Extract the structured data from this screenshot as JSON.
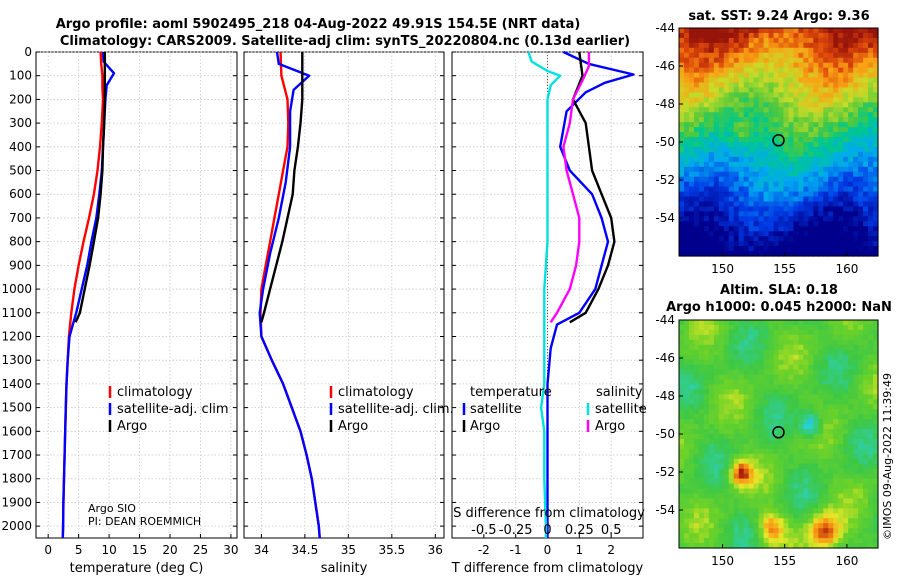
{
  "title": {
    "line1": "Argo profile: aoml 5902495_218 04-Aug-2022 49.91S 154.5E (NRT data)",
    "line2": "Climatology: CARS2009. Satellite-adj clim: synTS_20220804.nc (0.13d earlier)"
  },
  "chart_data": [
    {
      "type": "line",
      "xlabel": "temperature (deg C)",
      "xlim": [
        -2,
        31
      ],
      "xticks": [
        0,
        5,
        10,
        15,
        20,
        25,
        30
      ],
      "ylim": [
        0,
        2050
      ],
      "yticks": [
        0,
        100,
        200,
        300,
        400,
        500,
        600,
        700,
        800,
        900,
        1000,
        1100,
        1200,
        1300,
        1400,
        1500,
        1600,
        1700,
        1800,
        1900,
        2000
      ],
      "y_reversed": true,
      "grid": true,
      "legend": {
        "placement": "lower-right",
        "entries": [
          "climatology",
          "satellite-adj. clim",
          "Argo"
        ]
      },
      "annotations": [
        "Argo SIO",
        "PI: DEAN ROEMMICH"
      ],
      "series": [
        {
          "name": "climatology",
          "color": "#ff0000",
          "points": [
            [
              8.6,
              0
            ],
            [
              8.7,
              50
            ],
            [
              8.9,
              100
            ],
            [
              8.9,
              150
            ],
            [
              9.0,
              200
            ],
            [
              8.8,
              300
            ],
            [
              8.5,
              400
            ],
            [
              8.1,
              500
            ],
            [
              7.5,
              600
            ],
            [
              6.7,
              700
            ],
            [
              5.8,
              800
            ],
            [
              5.0,
              900
            ],
            [
              4.3,
              1000
            ],
            [
              3.8,
              1100
            ],
            [
              3.4,
              1200
            ],
            [
              3.2,
              1300
            ],
            [
              3.0,
              1400
            ],
            [
              2.9,
              1500
            ],
            [
              2.8,
              1600
            ],
            [
              2.7,
              1700
            ],
            [
              2.6,
              1800
            ],
            [
              2.5,
              1900
            ],
            [
              2.45,
              2000
            ],
            [
              2.4,
              2050
            ]
          ]
        },
        {
          "name": "satellite-adj. clim",
          "color": "#0000ff",
          "points": [
            [
              9.0,
              0
            ],
            [
              9.1,
              40
            ],
            [
              10.8,
              90
            ],
            [
              9.6,
              140
            ],
            [
              9.4,
              200
            ],
            [
              9.2,
              300
            ],
            [
              9.0,
              400
            ],
            [
              8.8,
              500
            ],
            [
              8.4,
              600
            ],
            [
              7.9,
              700
            ],
            [
              7.1,
              800
            ],
            [
              6.4,
              900
            ],
            [
              5.5,
              1000
            ],
            [
              4.6,
              1100
            ],
            [
              3.5,
              1200
            ],
            [
              3.2,
              1300
            ],
            [
              3.0,
              1400
            ],
            [
              2.9,
              1500
            ],
            [
              2.8,
              1600
            ],
            [
              2.7,
              1700
            ],
            [
              2.6,
              1800
            ],
            [
              2.5,
              1900
            ],
            [
              2.45,
              2000
            ],
            [
              2.4,
              2050
            ]
          ]
        },
        {
          "name": "Argo",
          "color": "#000000",
          "points": [
            [
              9.3,
              0
            ],
            [
              9.3,
              100
            ],
            [
              9.3,
              200
            ],
            [
              9.2,
              300
            ],
            [
              9.0,
              400
            ],
            [
              8.9,
              500
            ],
            [
              8.6,
              600
            ],
            [
              8.2,
              700
            ],
            [
              7.5,
              800
            ],
            [
              6.8,
              900
            ],
            [
              6.0,
              1000
            ],
            [
              5.2,
              1100
            ],
            [
              4.5,
              1140
            ]
          ]
        }
      ]
    },
    {
      "type": "line",
      "xlabel": "salinity",
      "xlim": [
        33.8,
        36.1
      ],
      "xticks": [
        34,
        34.5,
        35,
        35.5,
        36
      ],
      "ylim": [
        0,
        2050
      ],
      "y_reversed": true,
      "grid": true,
      "legend": {
        "placement": "lower-right",
        "entries": [
          "climatology",
          "satellite-adj. clim.",
          "Argo"
        ]
      },
      "series": [
        {
          "name": "climatology",
          "color": "#ff0000",
          "points": [
            [
              34.22,
              0
            ],
            [
              34.23,
              100
            ],
            [
              34.3,
              200
            ],
            [
              34.31,
              300
            ],
            [
              34.3,
              400
            ],
            [
              34.25,
              500
            ],
            [
              34.2,
              600
            ],
            [
              34.15,
              700
            ],
            [
              34.1,
              800
            ],
            [
              34.05,
              900
            ],
            [
              34.0,
              1000
            ],
            [
              33.99,
              1100
            ],
            [
              34.0,
              1200
            ],
            [
              34.12,
              1300
            ],
            [
              34.25,
              1400
            ],
            [
              34.35,
              1500
            ],
            [
              34.45,
              1600
            ],
            [
              34.52,
              1700
            ],
            [
              34.58,
              1800
            ],
            [
              34.62,
              1900
            ],
            [
              34.66,
              2000
            ],
            [
              34.67,
              2050
            ]
          ]
        },
        {
          "name": "satellite-adj. clim.",
          "color": "#0000ff",
          "points": [
            [
              34.18,
              0
            ],
            [
              34.2,
              50
            ],
            [
              34.55,
              100
            ],
            [
              34.37,
              160
            ],
            [
              34.33,
              250
            ],
            [
              34.33,
              400
            ],
            [
              34.28,
              550
            ],
            [
              34.2,
              700
            ],
            [
              34.1,
              850
            ],
            [
              34.02,
              1000
            ],
            [
              33.98,
              1100
            ],
            [
              34.0,
              1200
            ],
            [
              34.12,
              1300
            ],
            [
              34.25,
              1400
            ],
            [
              34.35,
              1500
            ],
            [
              34.45,
              1600
            ],
            [
              34.52,
              1700
            ],
            [
              34.58,
              1800
            ],
            [
              34.62,
              1900
            ],
            [
              34.66,
              2000
            ],
            [
              34.67,
              2050
            ]
          ]
        },
        {
          "name": "Argo",
          "color": "#000000",
          "points": [
            [
              34.47,
              0
            ],
            [
              34.47,
              100
            ],
            [
              34.47,
              200
            ],
            [
              34.45,
              300
            ],
            [
              34.42,
              400
            ],
            [
              34.38,
              500
            ],
            [
              34.36,
              600
            ],
            [
              34.3,
              700
            ],
            [
              34.24,
              800
            ],
            [
              34.17,
              900
            ],
            [
              34.1,
              1000
            ],
            [
              34.03,
              1100
            ],
            [
              34.0,
              1140
            ]
          ]
        }
      ]
    },
    {
      "type": "line",
      "xlabel": "T difference from climatology",
      "secondary_xlabel": "S difference from climatology",
      "xlim": [
        -3.0,
        3.0
      ],
      "xticks": [
        -2,
        -1,
        0,
        1,
        2
      ],
      "secondary_xticks": [
        "-0.5",
        "-0.25",
        "0",
        "0.25",
        "0.5"
      ],
      "ylim": [
        0,
        2050
      ],
      "y_reversed": true,
      "grid": true,
      "legend": {
        "placement": "lower-center",
        "titles": [
          "temperature",
          "salinity"
        ],
        "entries": [
          "satellite",
          "Argo",
          "satellite",
          "Argo"
        ]
      },
      "series": [
        {
          "name": "temperature satellite",
          "color": "#0000ff",
          "points": [
            [
              0.5,
              0
            ],
            [
              1.3,
              50
            ],
            [
              2.7,
              95
            ],
            [
              1.8,
              130
            ],
            [
              1.2,
              170
            ],
            [
              0.6,
              250
            ],
            [
              0.4,
              400
            ],
            [
              0.7,
              500
            ],
            [
              1.4,
              600
            ],
            [
              1.7,
              700
            ],
            [
              1.9,
              800
            ],
            [
              1.7,
              900
            ],
            [
              1.5,
              1000
            ],
            [
              1.0,
              1100
            ],
            [
              0.3,
              1150
            ],
            [
              0.1,
              1250
            ],
            [
              0.0,
              1400
            ],
            [
              0.0,
              1600
            ],
            [
              0.0,
              1800
            ],
            [
              0.0,
              2000
            ],
            [
              0.0,
              2050
            ]
          ]
        },
        {
          "name": "temperature Argo",
          "color": "#000000",
          "points": [
            [
              1.0,
              0
            ],
            [
              1.1,
              100
            ],
            [
              0.8,
              200
            ],
            [
              1.2,
              300
            ],
            [
              1.3,
              400
            ],
            [
              1.4,
              500
            ],
            [
              1.7,
              600
            ],
            [
              2.0,
              700
            ],
            [
              2.1,
              800
            ],
            [
              1.9,
              900
            ],
            [
              1.6,
              1000
            ],
            [
              1.2,
              1100
            ],
            [
              0.7,
              1140
            ]
          ]
        },
        {
          "name": "salinity satellite",
          "color": "#00e0e0",
          "points": [
            [
              -0.6,
              0
            ],
            [
              -0.5,
              40
            ],
            [
              0.0,
              80
            ],
            [
              0.4,
              100
            ],
            [
              0.1,
              140
            ],
            [
              0.0,
              200
            ],
            [
              0.0,
              400
            ],
            [
              0.0,
              600
            ],
            [
              0.0,
              800
            ],
            [
              -0.1,
              1000
            ],
            [
              -0.1,
              1200
            ],
            [
              -0.1,
              1400
            ],
            [
              -0.2,
              1500
            ],
            [
              -0.1,
              1600
            ],
            [
              -0.1,
              1800
            ],
            [
              -0.05,
              2000
            ],
            [
              -0.05,
              2050
            ]
          ]
        },
        {
          "name": "salinity Argo",
          "color": "#ff00ff",
          "points": [
            [
              1.3,
              0
            ],
            [
              1.3,
              60
            ],
            [
              1.1,
              120
            ],
            [
              0.8,
              200
            ],
            [
              0.7,
              300
            ],
            [
              0.5,
              400
            ],
            [
              0.6,
              500
            ],
            [
              0.8,
              600
            ],
            [
              1.0,
              700
            ],
            [
              1.0,
              800
            ],
            [
              0.9,
              900
            ],
            [
              0.7,
              1000
            ],
            [
              0.3,
              1100
            ],
            [
              0.1,
              1140
            ]
          ]
        }
      ]
    },
    {
      "type": "heatmap",
      "title": "sat. SST: 9.24 Argo: 9.36",
      "xlim": [
        146.5,
        162.5
      ],
      "xticks": [
        150,
        155,
        160
      ],
      "ylim": [
        -56,
        -44
      ],
      "yticks": [
        -44,
        -46,
        -48,
        -50,
        -52,
        -54
      ],
      "marker": {
        "lon": 154.5,
        "lat": -49.91
      }
    },
    {
      "type": "heatmap",
      "title": "Altim. SLA: 0.18",
      "subtitle": "Argo h1000: 0.045 h2000: NaN",
      "xlim": [
        146.5,
        162.5
      ],
      "xticks": [
        150,
        155,
        160
      ],
      "ylim": [
        -56,
        -44
      ],
      "yticks": [
        -44,
        -46,
        -48,
        -50,
        -52,
        -54
      ],
      "marker": {
        "lon": 154.5,
        "lat": -49.91
      }
    }
  ],
  "watermark": "©IMOS 09-Aug-2022 11:39:49"
}
